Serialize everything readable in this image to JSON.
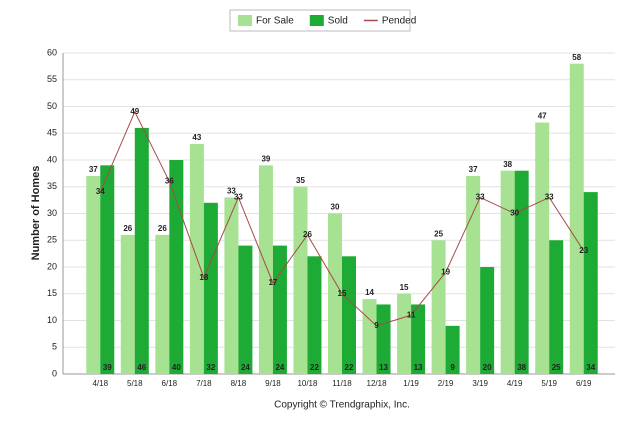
{
  "chart_data": {
    "type": "bar",
    "y_label": "Number of Homes",
    "caption": "Copyright © Trendgraphix, Inc.",
    "categories": [
      "4/18",
      "5/18",
      "6/18",
      "7/18",
      "8/18",
      "9/18",
      "10/18",
      "11/18",
      "12/18",
      "1/19",
      "2/19",
      "3/19",
      "4/19",
      "5/19",
      "6/19"
    ],
    "series": [
      {
        "name": "For Sale",
        "color": "#a6e291",
        "values": [
          37,
          26,
          26,
          43,
          33,
          39,
          35,
          30,
          14,
          15,
          25,
          37,
          38,
          47,
          58
        ]
      },
      {
        "name": "Sold",
        "color": "#1eab35",
        "values": [
          39,
          46,
          40,
          32,
          24,
          24,
          22,
          22,
          13,
          13,
          9,
          20,
          38,
          25,
          34
        ]
      },
      {
        "name": "Pended",
        "type": "line",
        "color": "#a84a4a",
        "values": [
          34,
          49,
          36,
          18,
          33,
          17,
          26,
          15,
          9,
          11,
          19,
          33,
          30,
          33,
          23
        ]
      }
    ],
    "ylim": [
      0,
      60
    ],
    "yticks": [
      0,
      5,
      10,
      15,
      20,
      25,
      30,
      35,
      40,
      45,
      50,
      55,
      60
    ],
    "grid": true,
    "legend": "top"
  }
}
